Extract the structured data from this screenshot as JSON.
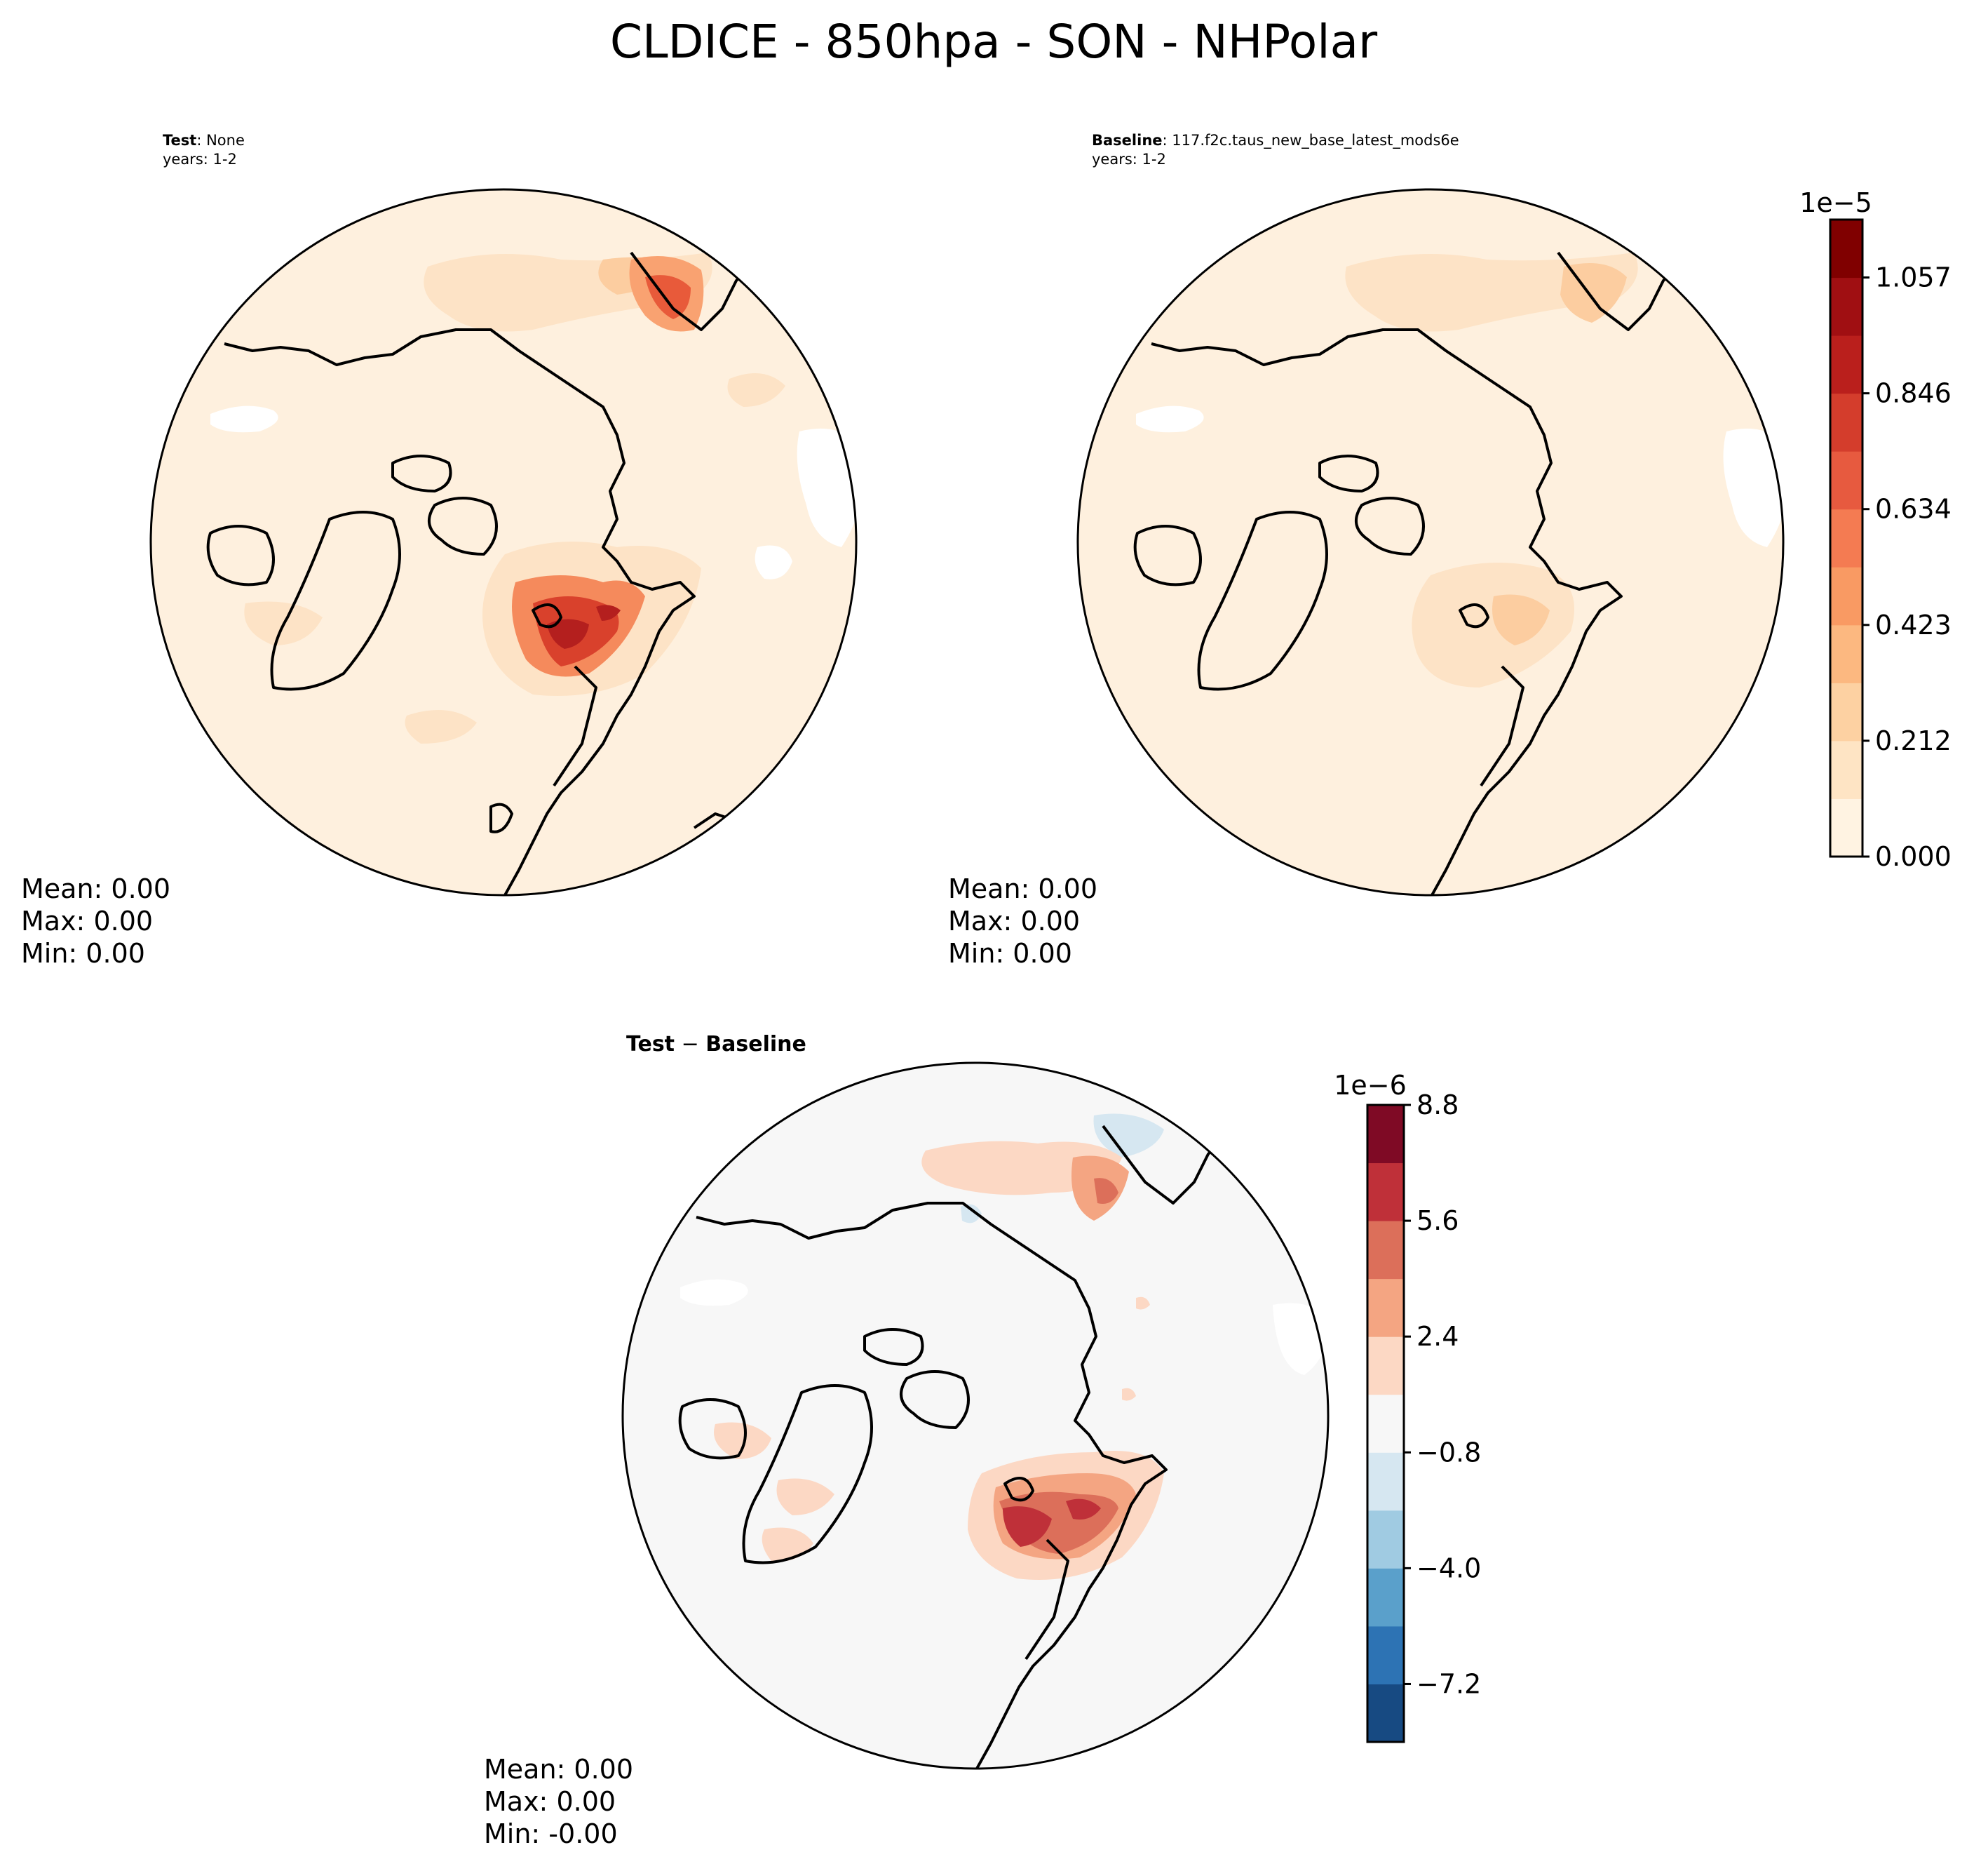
{
  "figure_title": "CLDICE - 850hpa - SON - NHPolar",
  "panels": {
    "test": {
      "label_bold": "Test",
      "label_rest": ": None",
      "years": "years: 1-2",
      "stats": {
        "mean": "Mean:  0.00",
        "max": "Max:  0.00",
        "min": "Min:  0.00"
      }
    },
    "baseline": {
      "label_bold": "Baseline",
      "label_rest": ": 117.f2c.taus_new_base_latest_mods6e",
      "years": "years: 1-2",
      "stats": {
        "mean": "Mean:  0.00",
        "max": "Max:  0.00",
        "min": "Min:  0.00"
      }
    },
    "diff": {
      "label_bold_1": "Test",
      "label_minus": " − ",
      "label_bold_2": "Baseline",
      "stats": {
        "mean": "Mean:  0.00",
        "max": "Max:  0.00",
        "min": "Min: -0.00"
      }
    }
  },
  "colorbars": {
    "main": {
      "exponent": "1e−5",
      "ticks": [
        "0.000",
        "0.212",
        "0.423",
        "0.634",
        "0.846",
        "1.057"
      ],
      "colors": [
        "#fff3e2",
        "#fee4c4",
        "#fdd1a2",
        "#fcb880",
        "#f99a63",
        "#f47b52",
        "#e75a3f",
        "#d43d2c",
        "#ba1f1c",
        "#a00f12",
        "#800000"
      ]
    },
    "diff": {
      "exponent": "1e−6",
      "ticks": [
        "−7.2",
        "−4.0",
        "−0.8",
        "2.4",
        "5.6",
        "8.8"
      ],
      "colors": [
        "#174a82",
        "#2d73b4",
        "#5aa0cb",
        "#a0cbe2",
        "#d6e7f1",
        "#f7f7f7",
        "#fcd8c4",
        "#f4a582",
        "#dc6f5a",
        "#bf3039",
        "#7f0a25"
      ]
    }
  },
  "chart_data": {
    "type": "heatmap",
    "title": "CLDICE - 850hpa - SON - NHPolar",
    "projection": "north polar stereographic",
    "panels": [
      {
        "name": "Test",
        "case": "None",
        "years": "1-2",
        "units_scale": "1e-5",
        "mean": 0.0,
        "max": 0.0,
        "min": 0.0
      },
      {
        "name": "Baseline",
        "case": "117.f2c.taus_new_base_latest_mods6e",
        "years": "1-2",
        "units_scale": "1e-5",
        "mean": 0.0,
        "max": 0.0,
        "min": 0.0
      },
      {
        "name": "Test − Baseline",
        "units_scale": "1e-6",
        "mean": 0.0,
        "max": 0.0,
        "min": -0.0
      }
    ],
    "colorbar_main": {
      "scale": "1e-5",
      "levels": [
        0.0,
        0.106,
        0.212,
        0.317,
        0.423,
        0.528,
        0.634,
        0.74,
        0.846,
        0.951,
        1.057,
        1.162
      ],
      "cmap": "OrRd"
    },
    "colorbar_diff": {
      "scale": "1e-6",
      "levels": [
        -8.8,
        -7.2,
        -5.6,
        -4.0,
        -2.4,
        -0.8,
        0.8,
        2.4,
        4.0,
        5.6,
        7.2,
        8.8
      ],
      "cmap": "RdBu_r"
    }
  }
}
